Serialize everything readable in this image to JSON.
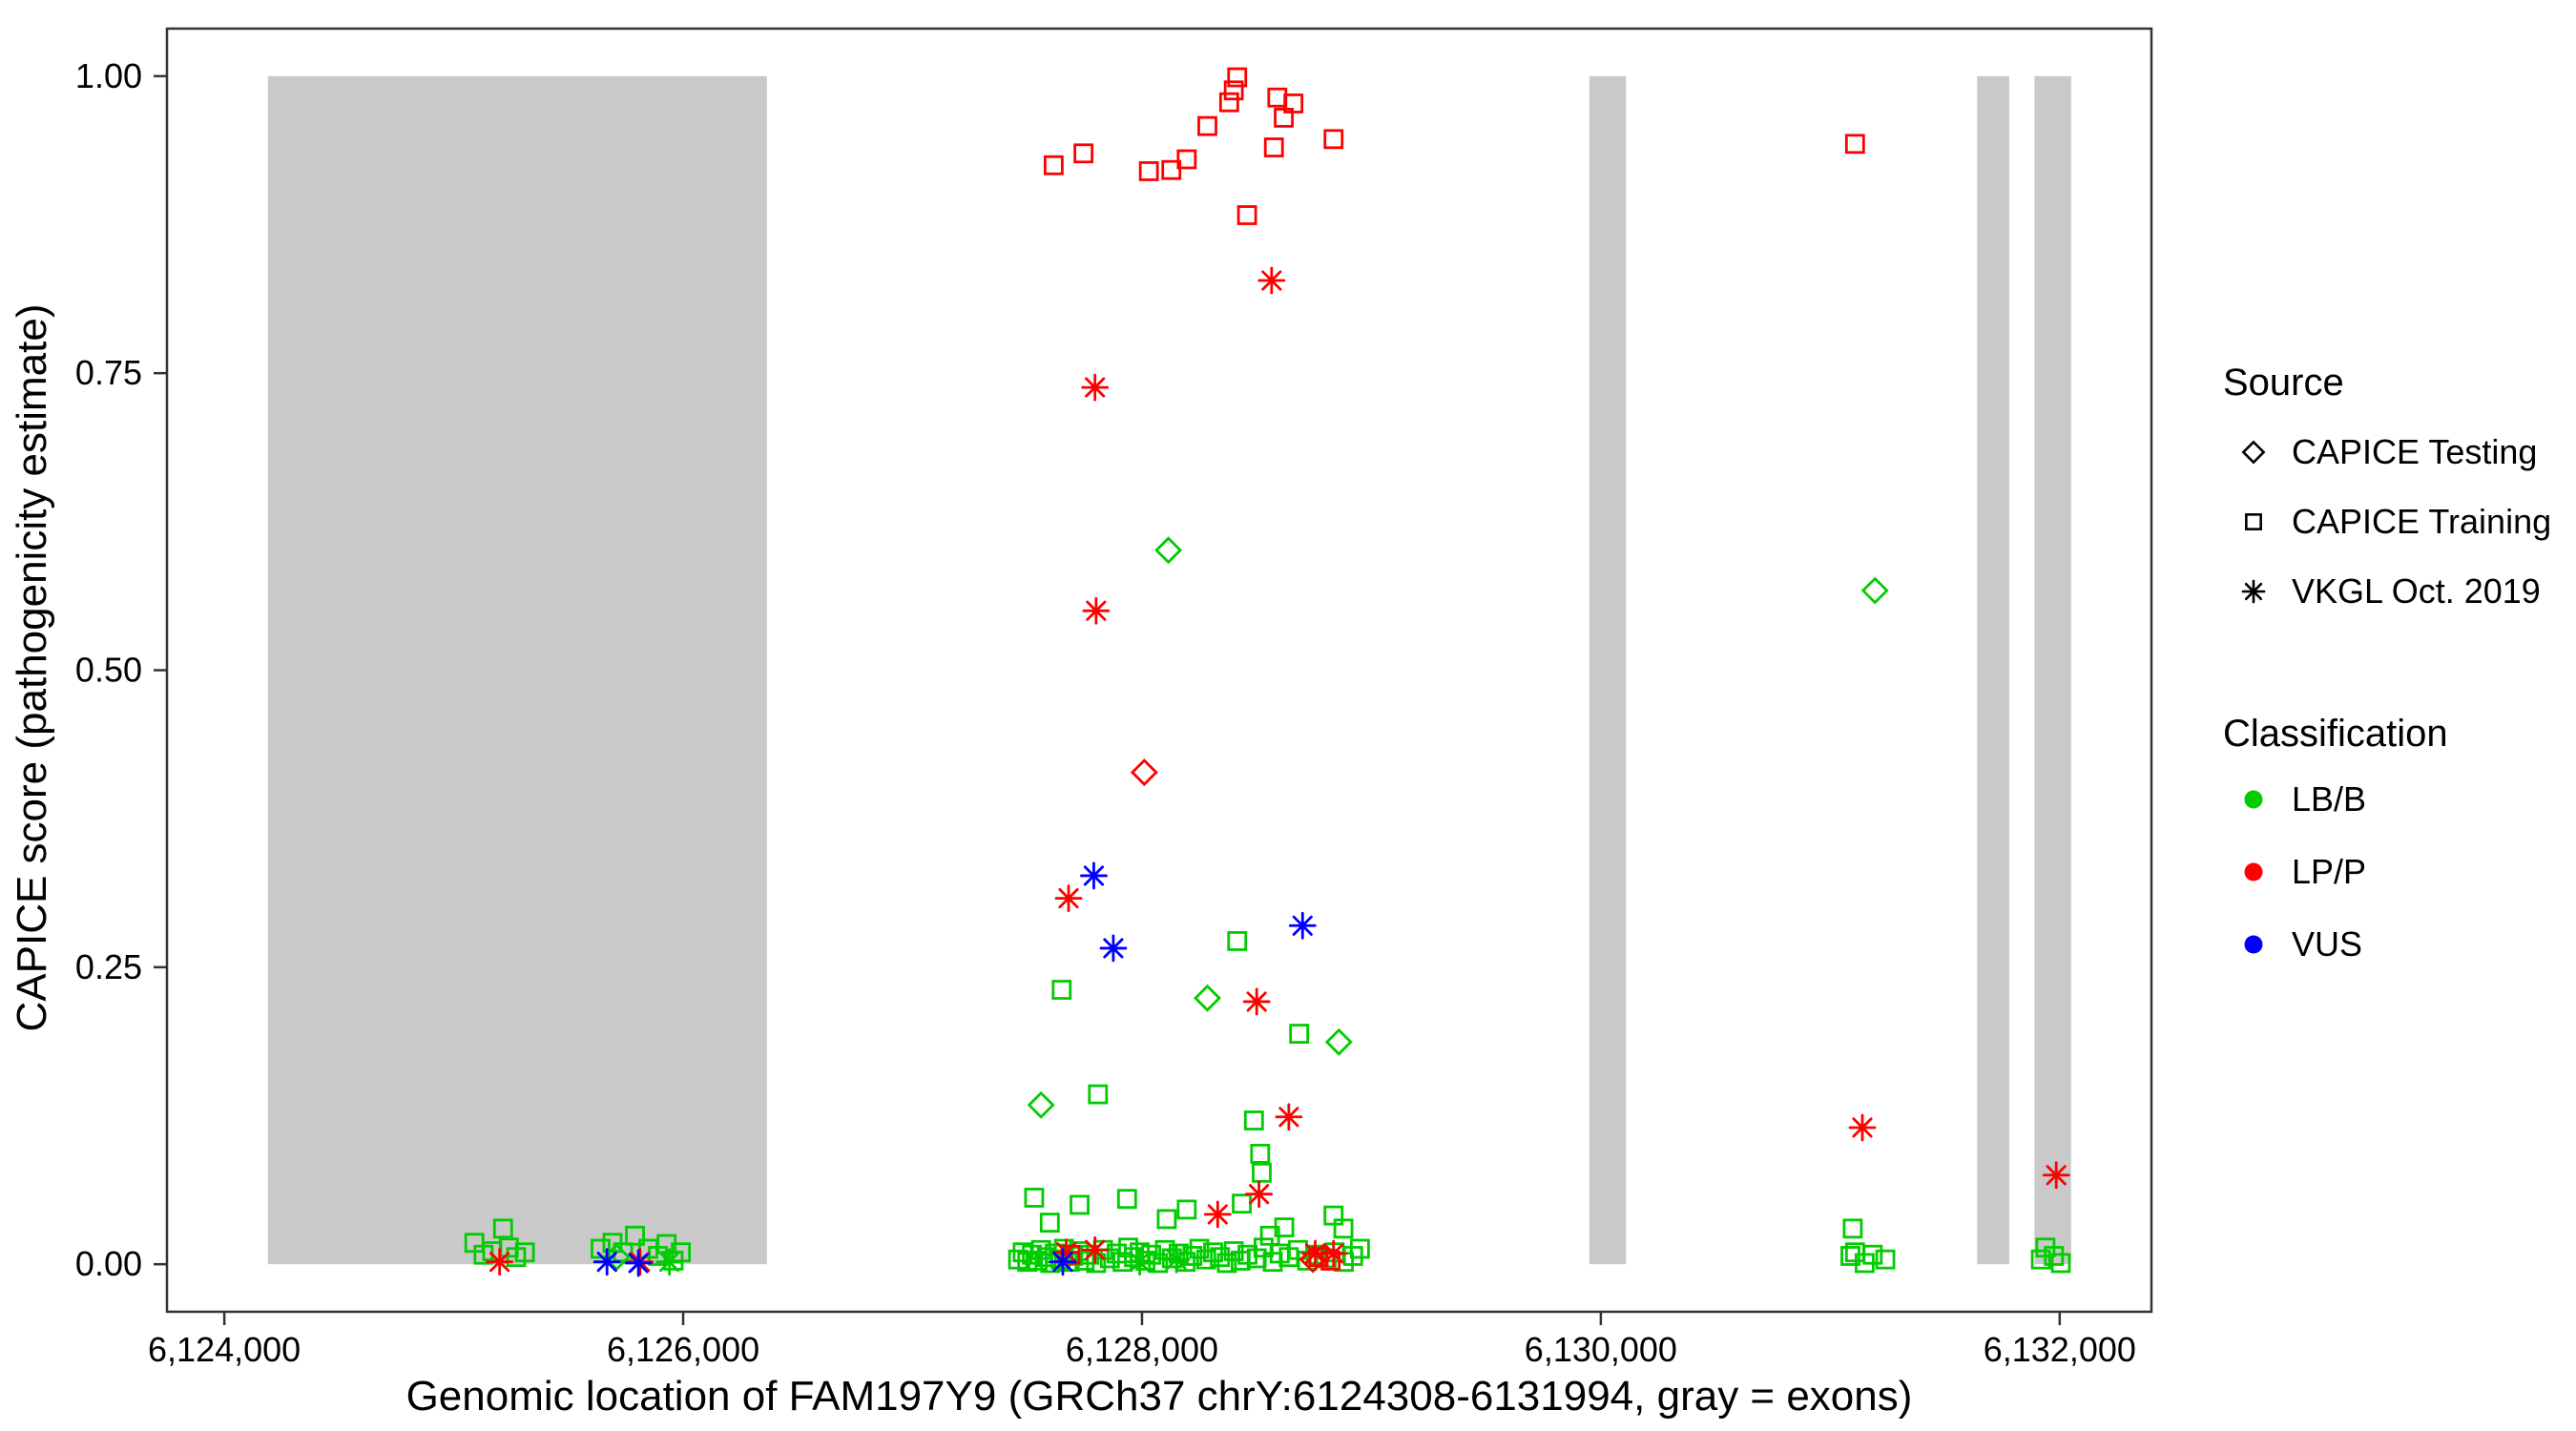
{
  "chart_data": {
    "type": "scatter",
    "title": "",
    "xlabel": "Genomic location of FAM197Y9 (GRCh37 chrY:6124308-6131994, gray = exons)",
    "ylabel": "CAPICE score (pathogenicity estimate)",
    "xlim": [
      6123750,
      6132400
    ],
    "ylim": [
      -0.04,
      1.04
    ],
    "grid": false,
    "x_ticks": [
      6124000,
      6126000,
      6128000,
      6130000,
      6132000
    ],
    "x_tick_labels": [
      "6,124,000",
      "6,126,000",
      "6,128,000",
      "6,130,000",
      "6,132,000"
    ],
    "y_ticks": [
      0.0,
      0.25,
      0.5,
      0.75,
      1.0
    ],
    "y_tick_labels": [
      "0.00",
      "0.25",
      "0.50",
      "0.75",
      "1.00"
    ],
    "exon_color": "#c9c9c9",
    "exons": [
      [
        6124190,
        6126365
      ],
      [
        6129950,
        6130110
      ],
      [
        6131640,
        6131780
      ],
      [
        6131890,
        6132050
      ]
    ],
    "colors": {
      "LB/B": "#00CC00",
      "LP/P": "#FF0000",
      "VUS": "#0000FF"
    },
    "series": [
      {
        "name": "CAPICE Training / LB-B",
        "source": "CAPICE Training",
        "classification": "LB/B",
        "shape": "square",
        "color": "#00CC00",
        "points": [
          [
            6125090,
            0.018
          ],
          [
            6125130,
            0.008
          ],
          [
            6125168,
            0.011
          ],
          [
            6125215,
            0.03
          ],
          [
            6125240,
            0.014
          ],
          [
            6125272,
            0.006
          ],
          [
            6125310,
            0.01
          ],
          [
            6125640,
            0.013
          ],
          [
            6125692,
            0.018
          ],
          [
            6125738,
            0.01
          ],
          [
            6125790,
            0.024
          ],
          [
            6125848,
            0.013
          ],
          [
            6125890,
            0.007
          ],
          [
            6125928,
            0.017
          ],
          [
            6125958,
            0.003
          ],
          [
            6125990,
            0.01
          ],
          [
            6127650,
            0.231
          ],
          [
            6128415,
            0.272
          ],
          [
            6128685,
            0.194
          ],
          [
            6127808,
            0.143
          ],
          [
            6128488,
            0.121
          ],
          [
            6128515,
            0.093
          ],
          [
            6128522,
            0.077
          ],
          [
            6127530,
            0.056
          ],
          [
            6127728,
            0.05
          ],
          [
            6127935,
            0.055
          ],
          [
            6128108,
            0.038
          ],
          [
            6128195,
            0.046
          ],
          [
            6128435,
            0.051
          ],
          [
            6128558,
            0.024
          ],
          [
            6128620,
            0.031
          ],
          [
            6128835,
            0.041
          ],
          [
            6128878,
            0.03
          ],
          [
            6127598,
            0.035
          ],
          [
            6127460,
            0.004
          ],
          [
            6127480,
            0.01
          ],
          [
            6127500,
            0.002
          ],
          [
            6127520,
            0.008
          ],
          [
            6127545,
            0.003
          ],
          [
            6127560,
            0.012
          ],
          [
            6127585,
            0.006
          ],
          [
            6127600,
            0.001
          ],
          [
            6127620,
            0.009
          ],
          [
            6127645,
            0.004
          ],
          [
            6127660,
            0.013
          ],
          [
            6127685,
            0.002
          ],
          [
            6127700,
            0.007
          ],
          [
            6127725,
            0.011
          ],
          [
            6127750,
            0.003
          ],
          [
            6127770,
            0.008
          ],
          [
            6127800,
            0.001
          ],
          [
            6127830,
            0.012
          ],
          [
            6127860,
            0.005
          ],
          [
            6127890,
            0.009
          ],
          [
            6127915,
            0.002
          ],
          [
            6127940,
            0.014
          ],
          [
            6127965,
            0.006
          ],
          [
            6127990,
            0.01
          ],
          [
            6128015,
            0.003
          ],
          [
            6128040,
            0.008
          ],
          [
            6128070,
            0.001
          ],
          [
            6128100,
            0.012
          ],
          [
            6128130,
            0.005
          ],
          [
            6128160,
            0.009
          ],
          [
            6128190,
            0.002
          ],
          [
            6128220,
            0.007
          ],
          [
            6128250,
            0.013
          ],
          [
            6128280,
            0.004
          ],
          [
            6128310,
            0.01
          ],
          [
            6128340,
            0.006
          ],
          [
            6128370,
            0.001
          ],
          [
            6128400,
            0.011
          ],
          [
            6128430,
            0.003
          ],
          [
            6128460,
            0.008
          ],
          [
            6128500,
            0.005
          ],
          [
            6128530,
            0.014
          ],
          [
            6128570,
            0.002
          ],
          [
            6128600,
            0.009
          ],
          [
            6128640,
            0.006
          ],
          [
            6128680,
            0.012
          ],
          [
            6128720,
            0.003
          ],
          [
            6128760,
            0.008
          ],
          [
            6128800,
            0.005
          ],
          [
            6128840,
            0.01
          ],
          [
            6128880,
            0.002
          ],
          [
            6128920,
            0.007
          ],
          [
            6128950,
            0.013
          ],
          [
            6131098,
            0.03
          ],
          [
            6131108,
            0.01
          ],
          [
            6131088,
            0.007
          ],
          [
            6131185,
            0.008
          ],
          [
            6131240,
            0.004
          ],
          [
            6131150,
            0.001
          ],
          [
            6131938,
            0.014
          ],
          [
            6131975,
            0.007
          ],
          [
            6131918,
            0.004
          ],
          [
            6132005,
            0.001
          ]
        ]
      },
      {
        "name": "CAPICE Training / LP-P",
        "source": "CAPICE Training",
        "classification": "LP/P",
        "shape": "square",
        "color": "#FF0000",
        "points": [
          [
            6127615,
            0.925
          ],
          [
            6127745,
            0.935
          ],
          [
            6128030,
            0.92
          ],
          [
            6128128,
            0.921
          ],
          [
            6128195,
            0.93
          ],
          [
            6128285,
            0.958
          ],
          [
            6128380,
            0.978
          ],
          [
            6128400,
            0.988
          ],
          [
            6128415,
            0.999
          ],
          [
            6128458,
            0.883
          ],
          [
            6128575,
            0.94
          ],
          [
            6128590,
            0.982
          ],
          [
            6128618,
            0.965
          ],
          [
            6128660,
            0.977
          ],
          [
            6128835,
            0.947
          ],
          [
            6131108,
            0.943
          ],
          [
            6128770,
            0.006
          ],
          [
            6128822,
            0.003
          ],
          [
            6127688,
            0.008
          ]
        ]
      },
      {
        "name": "CAPICE Testing / LB-B",
        "source": "CAPICE Testing",
        "classification": "LB/B",
        "shape": "diamond",
        "color": "#00CC00",
        "points": [
          [
            6128115,
            0.601
          ],
          [
            6128285,
            0.224
          ],
          [
            6128858,
            0.187
          ],
          [
            6127560,
            0.134
          ],
          [
            6131195,
            0.567
          ],
          [
            6125710,
            0.006
          ]
        ]
      },
      {
        "name": "CAPICE Testing / LP-P",
        "source": "CAPICE Testing",
        "classification": "LP/P",
        "shape": "diamond",
        "color": "#FF0000",
        "points": [
          [
            6128010,
            0.414
          ],
          [
            6128745,
            0.004
          ]
        ]
      },
      {
        "name": "VKGL Oct. 2019 / LB-B",
        "source": "VKGL Oct. 2019",
        "classification": "LB/B",
        "shape": "asterisk",
        "color": "#00CC00",
        "points": [
          [
            6125940,
            0.002
          ],
          [
            6128150,
            0.004
          ],
          [
            6127990,
            0.002
          ]
        ]
      },
      {
        "name": "VKGL Oct. 2019 / LP-P",
        "source": "VKGL Oct. 2019",
        "classification": "LP/P",
        "shape": "asterisk",
        "color": "#FF0000",
        "points": [
          [
            6128565,
            0.828
          ],
          [
            6127795,
            0.738
          ],
          [
            6127800,
            0.55
          ],
          [
            6127680,
            0.308
          ],
          [
            6128500,
            0.221
          ],
          [
            6128640,
            0.124
          ],
          [
            6128510,
            0.059
          ],
          [
            6128330,
            0.042
          ],
          [
            6131140,
            0.115
          ],
          [
            6131985,
            0.075
          ],
          [
            6125200,
            0.002
          ],
          [
            6127670,
            0.01
          ],
          [
            6127795,
            0.012
          ],
          [
            6128755,
            0.009
          ],
          [
            6128835,
            0.009
          ],
          [
            6125812,
            0.002
          ]
        ]
      },
      {
        "name": "VKGL Oct. 2019 / VUS",
        "source": "VKGL Oct. 2019",
        "classification": "VUS",
        "shape": "asterisk",
        "color": "#0000FF",
        "points": [
          [
            6127790,
            0.327
          ],
          [
            6127875,
            0.266
          ],
          [
            6128700,
            0.285
          ],
          [
            6125668,
            0.002
          ],
          [
            6125805,
            0.001
          ],
          [
            6127655,
            0.002
          ]
        ]
      }
    ],
    "legend": {
      "source": {
        "title": "Source",
        "items": [
          {
            "label": "CAPICE Testing",
            "shape": "diamond"
          },
          {
            "label": "CAPICE Training",
            "shape": "square"
          },
          {
            "label": "VKGL Oct. 2019",
            "shape": "asterisk"
          }
        ]
      },
      "classification": {
        "title": "Classification",
        "items": [
          {
            "label": "LB/B",
            "color": "#00CC00"
          },
          {
            "label": "LP/P",
            "color": "#FF0000"
          },
          {
            "label": "VUS",
            "color": "#0000FF"
          }
        ]
      }
    }
  }
}
